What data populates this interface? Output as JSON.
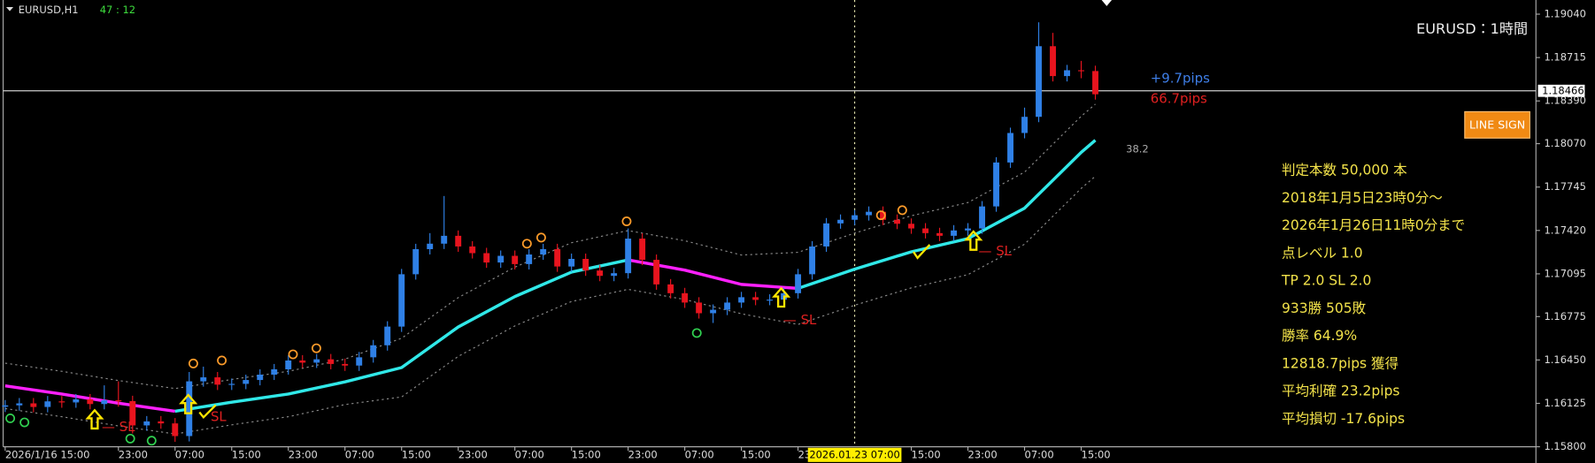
{
  "chart_data": {
    "type": "candlestick",
    "symbol": "EURUSD,H1",
    "countdown": "47 : 12",
    "title": "EURUSD：1時間",
    "pips_up": "+9.7pips",
    "pips_down": "66.7pips",
    "button": "LINE SIGN",
    "band_label": "38.2",
    "up_color": "#2f80e6",
    "down_color": "#e8141e",
    "xlim": [
      0,
      216
    ],
    "ylim": [
      1.158,
      1.19146
    ],
    "yticks": [
      {
        "value": 1.1904,
        "label": "1.19040"
      },
      1.18715,
      {
        "value": 1.1839,
        "label": "1.18390"
      },
      {
        "value": 1.1807,
        "label": "1.18070"
      },
      1.17745,
      {
        "value": 1.1742,
        "label": "1.17420"
      },
      1.17095,
      1.16775,
      {
        "value": 1.1645,
        "label": "1.16450"
      },
      1.16125,
      {
        "value": 1.158,
        "label": "1.15800"
      }
    ],
    "xticks": [
      {
        "value": 0,
        "label": "2026/1/16 15:00"
      },
      {
        "value": 16,
        "label": "23:00"
      },
      {
        "value": 24,
        "label": "07:00"
      },
      {
        "value": 32,
        "label": "15:00"
      },
      {
        "value": 40,
        "label": "23:00"
      },
      {
        "value": 48,
        "label": "07:00"
      },
      {
        "value": 56,
        "label": "15:00"
      },
      {
        "value": 64,
        "label": "23:00"
      },
      {
        "value": 72,
        "label": "07:00"
      },
      {
        "value": 80,
        "label": "15:00"
      },
      {
        "value": 88,
        "label": "23:00"
      },
      {
        "value": 96,
        "label": "07:00"
      },
      {
        "value": 104,
        "label": "15:00"
      },
      {
        "value": 112,
        "label": "23:00"
      },
      {
        "value": 128,
        "label": "15:00"
      },
      {
        "value": 136,
        "label": "23:00"
      },
      {
        "value": 144,
        "label": "07:00"
      },
      {
        "value": 152,
        "label": "15:00"
      }
    ],
    "crosshair": {
      "x": 120,
      "label": "2026.01.23 07:00"
    },
    "current_price": 1.18466,
    "x": [
      0,
      2,
      4,
      6,
      8,
      10,
      12,
      14,
      16,
      18,
      20,
      22,
      24,
      26,
      28,
      30,
      32,
      34,
      36,
      38,
      40,
      42,
      44,
      46,
      48,
      50,
      52,
      54,
      56,
      58,
      60,
      62,
      64,
      66,
      68,
      70,
      72,
      74,
      76,
      78,
      80,
      82,
      84,
      86,
      88,
      90,
      92,
      94,
      96,
      98,
      100,
      102,
      104,
      106,
      108,
      110,
      112,
      114,
      116,
      118,
      120,
      122,
      124,
      126,
      128,
      130,
      132,
      134,
      136,
      138,
      140,
      142,
      144,
      146,
      148,
      150,
      152,
      154
    ],
    "open": [
      1.161,
      1.1611,
      1.16125,
      1.16098,
      1.1614,
      1.16132,
      1.16155,
      1.1612,
      1.16148,
      1.16142,
      1.1596,
      1.1599,
      1.15975,
      1.1588,
      1.1629,
      1.1632,
      1.16265,
      1.16271,
      1.163,
      1.1634,
      1.1638,
      1.16446,
      1.1643,
      1.16455,
      1.1642,
      1.16408,
      1.1647,
      1.1656,
      1.167,
      1.17092,
      1.1728,
      1.17321,
      1.1738,
      1.173,
      1.1725,
      1.1718,
      1.1723,
      1.17168,
      1.1724,
      1.1728,
      1.1715,
      1.17207,
      1.1712,
      1.1708,
      1.171,
      1.17359,
      1.172,
      1.17016,
      1.1695,
      1.1688,
      1.168,
      1.16826,
      1.1688,
      1.1692,
      1.169,
      1.16902,
      1.1695,
      1.17092,
      1.173,
      1.17473,
      1.175,
      1.17534,
      1.1756,
      1.175,
      1.1747,
      1.17435,
      1.174,
      1.1738,
      1.1742,
      1.17435,
      1.176,
      1.17929,
      1.1815,
      1.18271,
      1.188,
      1.18576,
      1.1862,
      1.18614
    ],
    "high": [
      1.1615,
      1.16165,
      1.16165,
      1.1618,
      1.1618,
      1.16195,
      1.16195,
      1.1626,
      1.1629,
      1.16182,
      1.1603,
      1.1603,
      1.16015,
      1.1636,
      1.164,
      1.1636,
      1.16311,
      1.1634,
      1.1638,
      1.1642,
      1.16486,
      1.16486,
      1.16495,
      1.16495,
      1.1646,
      1.1651,
      1.166,
      1.1674,
      1.17132,
      1.1732,
      1.174,
      1.17678,
      1.1742,
      1.1734,
      1.1729,
      1.1727,
      1.1727,
      1.1728,
      1.1732,
      1.1732,
      1.17247,
      1.17247,
      1.1716,
      1.1714,
      1.17435,
      1.17399,
      1.1724,
      1.17056,
      1.1699,
      1.1692,
      1.16866,
      1.1692,
      1.1696,
      1.1696,
      1.16942,
      1.1699,
      1.17132,
      1.1734,
      1.17513,
      1.1754,
      1.17574,
      1.176,
      1.176,
      1.1754,
      1.1751,
      1.17475,
      1.1744,
      1.1746,
      1.17475,
      1.1764,
      1.17969,
      1.1819,
      1.1834,
      1.18979,
      1.189,
      1.1866,
      1.1869,
      1.18654
    ],
    "low": [
      1.1606,
      1.1607,
      1.16058,
      1.16058,
      1.16092,
      1.16092,
      1.1608,
      1.1608,
      1.161,
      1.159,
      1.1592,
      1.15935,
      1.15837,
      1.1584,
      1.1625,
      1.16225,
      1.16225,
      1.16231,
      1.1626,
      1.163,
      1.1634,
      1.1639,
      1.1639,
      1.1638,
      1.16368,
      1.16368,
      1.1643,
      1.1652,
      1.1666,
      1.17052,
      1.1724,
      1.17281,
      1.1726,
      1.1721,
      1.1714,
      1.1714,
      1.17128,
      1.17128,
      1.172,
      1.1711,
      1.1711,
      1.1708,
      1.1704,
      1.1704,
      1.1706,
      1.1716,
      1.16976,
      1.1691,
      1.1684,
      1.1676,
      1.16727,
      1.16786,
      1.1684,
      1.1686,
      1.1686,
      1.16862,
      1.1691,
      1.17052,
      1.1726,
      1.17433,
      1.1746,
      1.17494,
      1.1746,
      1.1743,
      1.17395,
      1.1736,
      1.1734,
      1.1734,
      1.1738,
      1.17395,
      1.1756,
      1.17889,
      1.1811,
      1.18231,
      1.18536,
      1.18536,
      1.1856,
      1.184
    ],
    "close": [
      1.1611,
      1.16125,
      1.16098,
      1.1614,
      1.16132,
      1.16155,
      1.1612,
      1.16148,
      1.16142,
      1.1596,
      1.1599,
      1.15975,
      1.1588,
      1.1629,
      1.1632,
      1.16265,
      1.16271,
      1.163,
      1.1634,
      1.1638,
      1.16446,
      1.1643,
      1.16455,
      1.1642,
      1.16408,
      1.1647,
      1.1656,
      1.167,
      1.17092,
      1.1728,
      1.17321,
      1.1738,
      1.173,
      1.1725,
      1.1718,
      1.1723,
      1.17168,
      1.1724,
      1.1728,
      1.1715,
      1.17207,
      1.1712,
      1.1708,
      1.171,
      1.17359,
      1.172,
      1.17016,
      1.1695,
      1.1688,
      1.168,
      1.16826,
      1.1688,
      1.1692,
      1.169,
      1.16902,
      1.1695,
      1.17092,
      1.173,
      1.17473,
      1.175,
      1.17534,
      1.1756,
      1.175,
      1.1747,
      1.17435,
      1.174,
      1.1738,
      1.1742,
      1.17435,
      1.176,
      1.17929,
      1.1815,
      1.18271,
      1.188,
      1.18576,
      1.1862,
      1.18614,
      1.1844
    ],
    "line_x": [
      0,
      8,
      16,
      24,
      32,
      40,
      48,
      56,
      64,
      72,
      80,
      88,
      96,
      104,
      112,
      120,
      128,
      136,
      144,
      152,
      154
    ],
    "lines": [
      {
        "color": "#ff20ff",
        "width": 3,
        "values": [
          1.16256,
          1.16195,
          1.16126,
          1.16066,
          null,
          null,
          null,
          null,
          null,
          null,
          null,
          1.17199,
          1.17123,
          1.17016,
          1.16986,
          null,
          null,
          null,
          null,
          null,
          null
        ]
      },
      {
        "color": "#30e8e8",
        "width": 3,
        "values": [
          null,
          null,
          null,
          1.16066,
          1.16134,
          1.16195,
          1.16286,
          1.16393,
          1.16697,
          1.16925,
          1.17108,
          1.17199,
          null,
          null,
          1.16986,
          1.1713,
          1.1726,
          1.17359,
          1.17587,
          1.18005,
          1.18096
        ]
      },
      {
        "color": "#8a8a8a",
        "width": 1,
        "dash": true,
        "values": [
          1.16426,
          1.16365,
          1.16296,
          1.16236,
          1.16304,
          1.16365,
          1.16456,
          1.16613,
          1.16917,
          1.17145,
          1.17328,
          1.17419,
          1.17343,
          1.17236,
          1.17256,
          1.174,
          1.1753,
          1.17629,
          1.17857,
          1.18275,
          1.18366
        ]
      },
      {
        "color": "#8a8a8a",
        "width": 1,
        "dash": true,
        "values": [
          1.16086,
          1.16025,
          1.15956,
          1.15896,
          1.15964,
          1.16025,
          1.16116,
          1.16173,
          1.16477,
          1.16705,
          1.16888,
          1.16979,
          1.16903,
          1.16796,
          1.16716,
          1.1686,
          1.1699,
          1.17089,
          1.17317,
          1.17735,
          1.17826
        ]
      }
    ],
    "annotations": [
      "— SL",
      "SL",
      "— SL",
      "— SL"
    ],
    "stats": [
      "判定本数 50,000 本",
      "2018年1月5日23時0分～",
      "2026年1月26日11時0分まで",
      "点レベル 1.0",
      "TP 2.0 SL 2.0",
      "933勝 505敗",
      "勝率 64.9%",
      "12818.7pips 獲得",
      "平均利確 23.2pips",
      "平均損切 -17.6pips"
    ]
  }
}
